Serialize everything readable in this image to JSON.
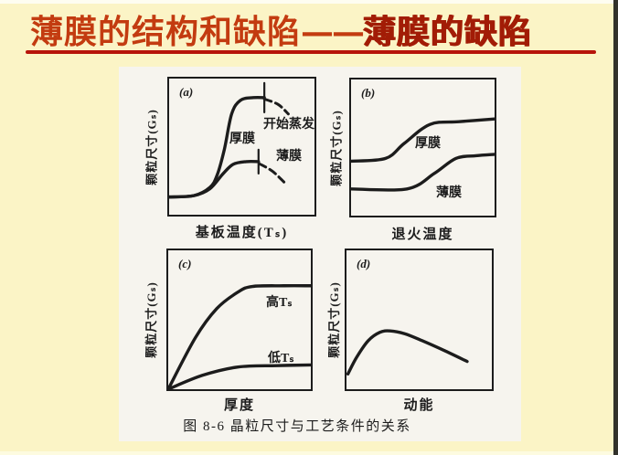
{
  "colors": {
    "background": "#fbf4c6",
    "title_text": "#c33b10",
    "title_text_emphasis": "#a21c06",
    "underline": "#b7140a",
    "paper": "#f6f4ee",
    "ink": "#1c1c1c"
  },
  "header": {
    "title_part1": "薄膜的结构和缺陷",
    "title_dash": "——",
    "title_part2": "薄膜的缺陷"
  },
  "figure": {
    "caption": "图 8-6  晶粒尺寸与工艺条件的关系",
    "panels": [
      {
        "tag": "(a)",
        "xlabel": "基板温度(Tₛ)",
        "ylabel": "颗粒尺寸(Gₛ)",
        "curves": [
          "厚膜",
          "薄膜"
        ],
        "annotation": "开始蒸发"
      },
      {
        "tag": "(b)",
        "xlabel": "退火温度",
        "ylabel": "颗粒尺寸(Gₛ)",
        "curves": [
          "厚膜",
          "薄膜"
        ]
      },
      {
        "tag": "(c)",
        "xlabel": "厚度",
        "ylabel": "颗粒尺寸(Gₛ)",
        "curves": [
          "高Tₛ",
          "低Tₛ"
        ]
      },
      {
        "tag": "(d)",
        "xlabel": "动能",
        "ylabel": "颗粒尺寸(Gₛ)",
        "curves": []
      }
    ]
  },
  "chart_data": [
    {
      "type": "line",
      "panel": "(a)",
      "title": "(a)",
      "xlabel": "基板温度(Tₛ)",
      "ylabel": "颗粒尺寸(Gₛ)",
      "axes": "qualitative sketch, no numeric ticks; values normalized 0-1",
      "series": [
        {
          "name": "厚膜",
          "x": [
            0,
            0.17,
            0.28,
            0.33,
            0.38,
            0.43,
            0.49,
            0.58,
            0.655
          ],
          "y": [
            0.13,
            0.14,
            0.2,
            0.29,
            0.48,
            0.74,
            0.84,
            0.86,
            0.86
          ]
        },
        {
          "name": "薄膜",
          "x": [
            0,
            0.17,
            0.28,
            0.37,
            0.44,
            0.53,
            0.615
          ],
          "y": [
            0.13,
            0.14,
            0.19,
            0.3,
            0.37,
            0.39,
            0.39
          ]
        }
      ],
      "dashed_tails": [
        {
          "series": "厚膜",
          "x": [
            0.655,
            0.75,
            0.82
          ],
          "y": [
            0.85,
            0.81,
            0.74
          ]
        },
        {
          "series": "薄膜",
          "x": [
            0.62,
            0.71,
            0.79
          ],
          "y": [
            0.375,
            0.32,
            0.24
          ]
        }
      ],
      "evaporation_ticks": [
        {
          "series": "厚膜",
          "x": 0.655,
          "y": 0.86,
          "len": 32
        },
        {
          "series": "薄膜",
          "x": 0.615,
          "y": 0.39,
          "len": 26
        }
      ],
      "annotations": [
        "开始蒸发"
      ]
    },
    {
      "type": "line",
      "panel": "(b)",
      "title": "(b)",
      "xlabel": "退火温度",
      "ylabel": "颗粒尺寸(Gₛ)",
      "axes": "qualitative sketch, no numeric ticks; values normalized 0-1",
      "series": [
        {
          "name": "厚膜",
          "x": [
            0,
            0.24,
            0.37,
            0.55,
            0.75,
            1.0
          ],
          "y": [
            0.4,
            0.42,
            0.53,
            0.67,
            0.69,
            0.71
          ]
        },
        {
          "name": "薄膜",
          "x": [
            0,
            0.39,
            0.58,
            0.73,
            0.87,
            1.0
          ],
          "y": [
            0.196,
            0.196,
            0.31,
            0.42,
            0.44,
            0.45
          ]
        }
      ]
    },
    {
      "type": "line",
      "panel": "(c)",
      "title": "(c)",
      "xlabel": "厚度",
      "ylabel": "颗粒尺寸(Gₛ)",
      "axes": "qualitative sketch, no numeric ticks; values normalized 0-1",
      "series": [
        {
          "name": "高Tₛ",
          "x": [
            0,
            0.19,
            0.34,
            0.49,
            0.59,
            0.81,
            1.0
          ],
          "y": [
            0.0,
            0.37,
            0.58,
            0.7,
            0.74,
            0.745,
            0.745
          ]
        },
        {
          "name": "低Tₛ",
          "x": [
            0,
            0.24,
            0.49,
            0.76,
            1.0
          ],
          "y": [
            0.0,
            0.1,
            0.16,
            0.17,
            0.175
          ]
        }
      ]
    },
    {
      "type": "line",
      "panel": "(d)",
      "title": "(d)",
      "xlabel": "动能",
      "ylabel": "颗粒尺寸(Gₛ)",
      "axes": "qualitative sketch, no numeric ticks; values normalized 0-1",
      "series": [
        {
          "name": "颗粒尺寸",
          "x": [
            0.01,
            0.07,
            0.15,
            0.23,
            0.3,
            0.4,
            0.52,
            0.67,
            0.83
          ],
          "y": [
            0.11,
            0.23,
            0.35,
            0.41,
            0.42,
            0.4,
            0.35,
            0.28,
            0.2
          ]
        }
      ]
    }
  ]
}
